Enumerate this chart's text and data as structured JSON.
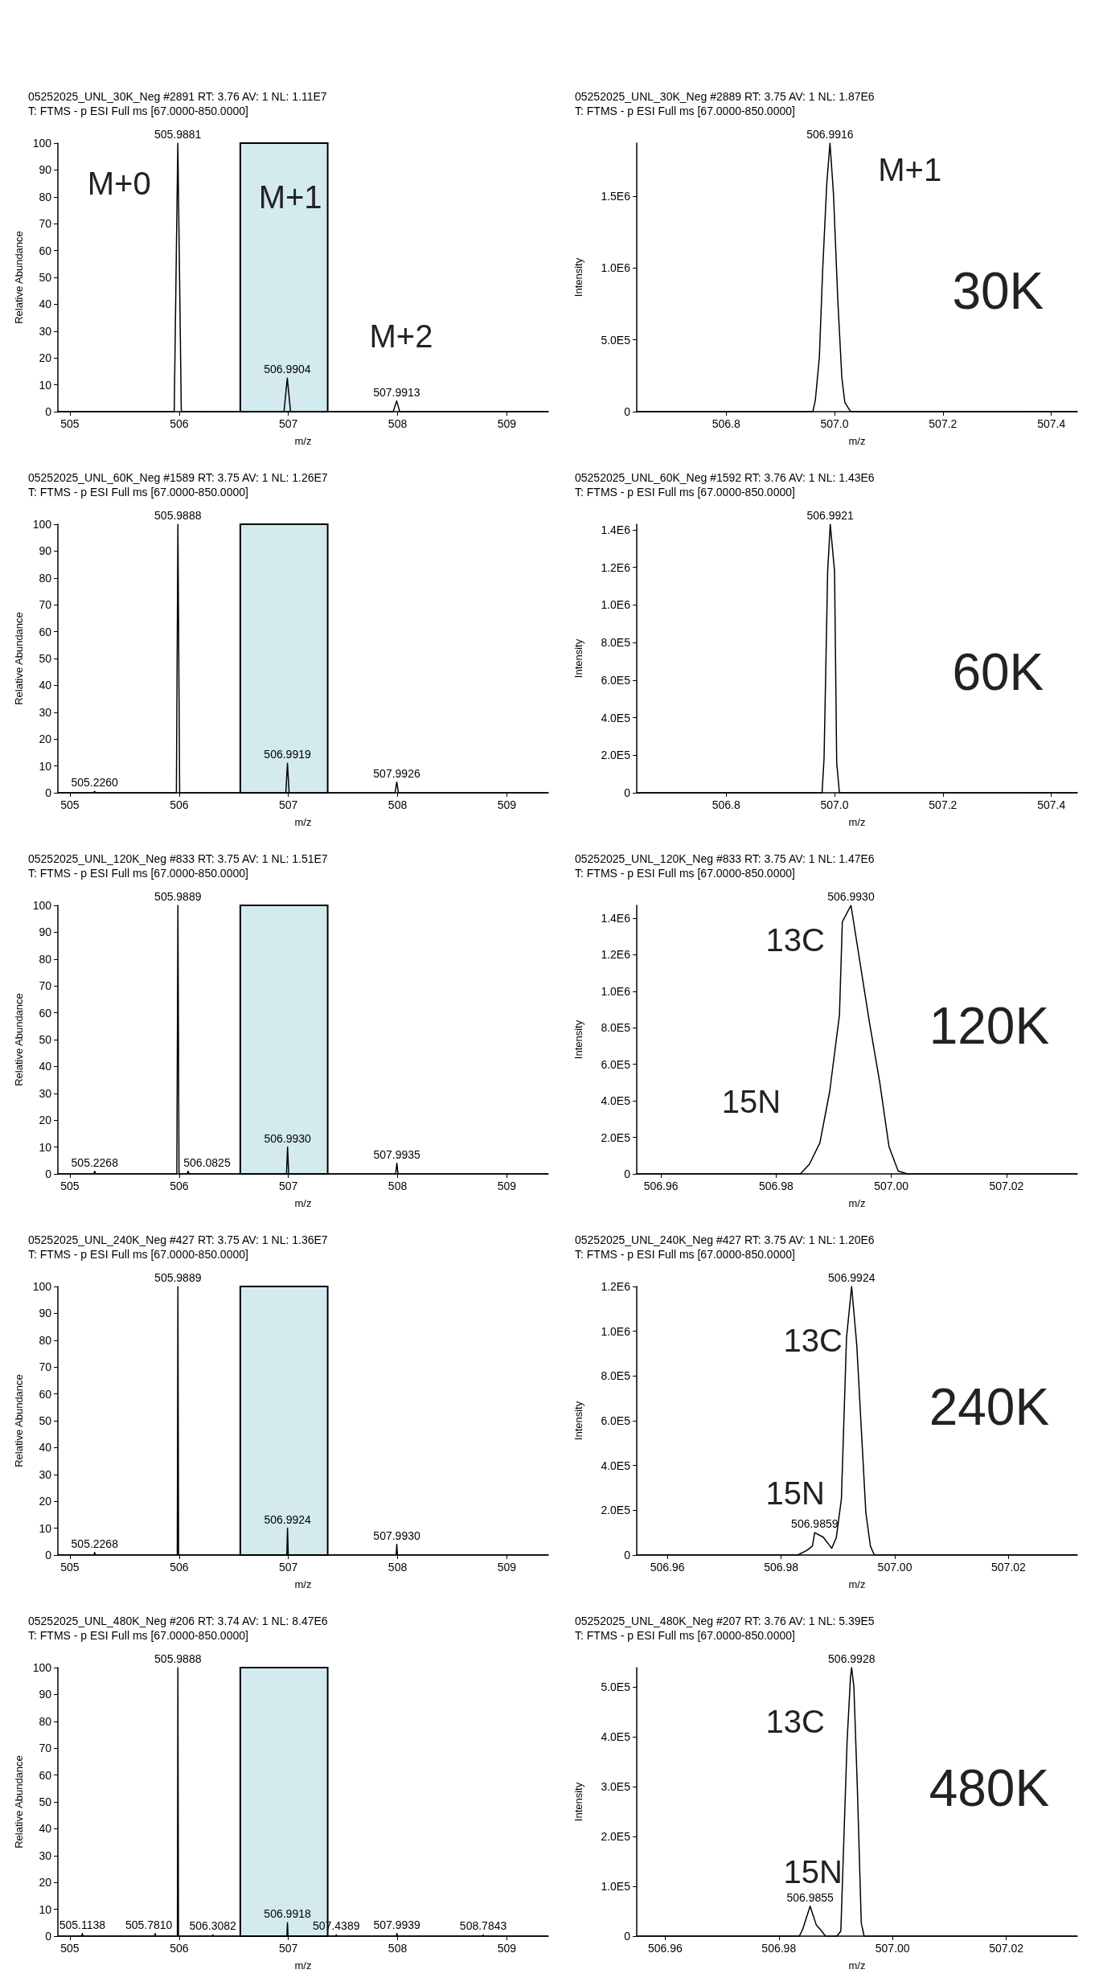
{
  "chart_data": [
    {
      "type": "line",
      "title": "05252025_UNL_30K_Neg #2891 RT: 3.76 AV: 1 NL: 1.11E7",
      "subtitle": "T: FTMS - p ESI Full ms [67.0000-850.0000]",
      "xlabel": "m/z",
      "ylabel": "Relative Abundance",
      "x": [
        504.89,
        505.955,
        505.9881,
        506.02,
        506.96,
        506.9904,
        507.02,
        507.96,
        507.9913,
        508.02,
        509.38
      ],
      "series": [
        {
          "color": "#000000",
          "values": [
            0,
            0,
            100,
            0,
            0,
            12.5,
            0,
            0,
            4,
            0,
            0
          ]
        }
      ],
      "xlim": [
        504.89,
        509.38
      ],
      "xticks": [
        505,
        506,
        507,
        508,
        509
      ],
      "ylim": [
        0,
        100
      ],
      "yticks": [
        0,
        10,
        20,
        30,
        40,
        50,
        60,
        70,
        80,
        90,
        100
      ],
      "grid": false,
      "bands": [
        {
          "axis": "x",
          "from": 506.56,
          "to": 507.36,
          "color": "#d3eaef"
        }
      ],
      "annotations": [
        {
          "text": "505.9881",
          "x": 505.9881,
          "y": 100
        },
        {
          "text": "506.9904",
          "x": 506.9904,
          "y": 12.5
        },
        {
          "text": "507.9913",
          "x": 507.9913,
          "y": 4
        },
        "M+0",
        "M+1",
        "M+2"
      ]
    },
    {
      "type": "line",
      "title": "05252025_UNL_30K_Neg #2889 RT: 3.75 AV: 1 NL: 1.87E6",
      "subtitle": "T: FTMS - p ESI Full ms [67.0000-850.0000]",
      "xlabel": "m/z",
      "ylabel": "Intensity",
      "x": [
        506.635,
        506.96,
        506.9646,
        506.972,
        506.978,
        506.9857,
        506.9916,
        506.998,
        507.006,
        507.0135,
        507.019,
        507.028,
        507.031,
        507.448
      ],
      "series": [
        {
          "color": "#000000",
          "values": [
            0,
            0,
            80000,
            380000,
            980000,
            1590000,
            1870000,
            1520000,
            780000,
            235000,
            65000,
            10000,
            0,
            0
          ]
        }
      ],
      "xlim": [
        506.635,
        507.448
      ],
      "xticks": [
        {
          "value": 506.8,
          "label": "506.8"
        },
        {
          "value": 507,
          "label": "507.0"
        },
        {
          "value": 507.2,
          "label": "507.2"
        },
        {
          "value": 507.4,
          "label": "507.4"
        }
      ],
      "ylim": [
        0,
        1870000
      ],
      "yticks": [
        0,
        {
          "value": 500000,
          "label": "5.0E5"
        },
        {
          "value": 1000000,
          "label": "1.0E6"
        },
        {
          "value": 1500000,
          "label": "1.5E6"
        }
      ],
      "grid": false,
      "annotations": [
        {
          "text": "506.9916",
          "x": 506.9916,
          "y": 1870000
        },
        "M+1",
        "30K"
      ]
    },
    {
      "type": "line",
      "title": "05252025_UNL_60K_Neg #1589 RT: 3.75 AV: 1 NL: 1.26E7",
      "subtitle": "T: FTMS - p ESI Full ms [67.0000-850.0000]",
      "xlabel": "m/z",
      "ylabel": "Relative Abundance",
      "x": [
        504.89,
        505.21,
        505.226,
        505.24,
        505.975,
        505.9888,
        506.005,
        506.977,
        506.9919,
        507.007,
        507.977,
        507.9926,
        508.008,
        509.38
      ],
      "series": [
        {
          "color": "#000000",
          "values": [
            0,
            0,
            0.5,
            0,
            0,
            100,
            0,
            0,
            11,
            0,
            0,
            4,
            0,
            0
          ]
        }
      ],
      "xlim": [
        504.89,
        509.38
      ],
      "xticks": [
        505,
        506,
        507,
        508,
        509
      ],
      "ylim": [
        0,
        100
      ],
      "yticks": [
        0,
        10,
        20,
        30,
        40,
        50,
        60,
        70,
        80,
        90,
        100
      ],
      "grid": false,
      "bands": [
        {
          "axis": "x",
          "from": 506.56,
          "to": 507.36,
          "color": "#d3eaef"
        }
      ],
      "annotations": [
        {
          "text": "505.2260",
          "x": 505.226,
          "y": 0.5
        },
        {
          "text": "505.9888",
          "x": 505.9888,
          "y": 100
        },
        {
          "text": "506.9919",
          "x": 506.9919,
          "y": 11
        },
        {
          "text": "507.9926",
          "x": 507.9926,
          "y": 4
        }
      ]
    },
    {
      "type": "line",
      "title": "05252025_UNL_60K_Neg #1592 RT: 3.76 AV: 1 NL: 1.43E6",
      "subtitle": "T: FTMS - p ESI Full ms [67.0000-850.0000]",
      "xlabel": "m/z",
      "ylabel": "Intensity",
      "x": [
        506.635,
        506.977,
        506.9807,
        506.9873,
        506.9921,
        507.0,
        507.004,
        507.009,
        507.448
      ],
      "series": [
        {
          "color": "#000000",
          "values": [
            0,
            0,
            185000,
            1180000,
            1430000,
            1180000,
            160000,
            0,
            0
          ]
        }
      ],
      "xlim": [
        506.635,
        507.448
      ],
      "xticks": [
        {
          "value": 506.8,
          "label": "506.8"
        },
        {
          "value": 507,
          "label": "507.0"
        },
        {
          "value": 507.2,
          "label": "507.2"
        },
        {
          "value": 507.4,
          "label": "507.4"
        }
      ],
      "ylim": [
        0,
        1430000
      ],
      "yticks": [
        0,
        {
          "value": 200000,
          "label": "2.0E5"
        },
        {
          "value": 400000,
          "label": "4.0E5"
        },
        {
          "value": 600000,
          "label": "6.0E5"
        },
        {
          "value": 800000,
          "label": "8.0E5"
        },
        {
          "value": 1000000,
          "label": "1.0E6"
        },
        {
          "value": 1200000,
          "label": "1.2E6"
        },
        {
          "value": 1400000,
          "label": "1.4E6"
        }
      ],
      "grid": false,
      "annotations": [
        {
          "text": "506.9921",
          "x": 506.9921,
          "y": 1430000
        },
        "60K"
      ]
    },
    {
      "type": "line",
      "title": "05252025_UNL_120K_Neg #833 RT: 3.75 AV: 1 NL: 1.51E7",
      "subtitle": "T: FTMS - p ESI Full ms [67.0000-850.0000]",
      "xlabel": "m/z",
      "ylabel": "Relative Abundance",
      "x": [
        504.89,
        505.217,
        505.2268,
        505.237,
        505.979,
        505.9889,
        505.999,
        506.072,
        506.0825,
        506.093,
        506.983,
        506.993,
        507.003,
        507.983,
        507.9935,
        508.004,
        509.38
      ],
      "series": [
        {
          "color": "#000000",
          "values": [
            0,
            0,
            1,
            0,
            0,
            100,
            0,
            0,
            1,
            0,
            0,
            10,
            0,
            0,
            4,
            0,
            0
          ]
        }
      ],
      "xlim": [
        504.89,
        509.38
      ],
      "xticks": [
        505,
        506,
        507,
        508,
        509
      ],
      "ylim": [
        0,
        100
      ],
      "yticks": [
        0,
        10,
        20,
        30,
        40,
        50,
        60,
        70,
        80,
        90,
        100
      ],
      "grid": false,
      "bands": [
        {
          "axis": "x",
          "from": 506.56,
          "to": 507.36,
          "color": "#d3eaef"
        }
      ],
      "annotations": [
        {
          "text": "505.2268",
          "x": 505.2268,
          "y": 1
        },
        {
          "text": "505.9889",
          "x": 505.9889,
          "y": 100
        },
        {
          "text": "506.0825",
          "x": 506.0825,
          "y": 1
        },
        {
          "text": "506.9930",
          "x": 506.993,
          "y": 10
        },
        {
          "text": "507.9935",
          "x": 507.9935,
          "y": 4
        }
      ]
    },
    {
      "type": "line",
      "title": "05252025_UNL_120K_Neg #833 RT: 3.75 AV: 1 NL: 1.47E6",
      "subtitle": "T: FTMS - p ESI Full ms [67.0000-850.0000]",
      "xlabel": "m/z",
      "ylabel": "Intensity",
      "x": [
        506.9558,
        506.9842,
        506.9858,
        506.9876,
        506.9893,
        506.991,
        506.9915,
        506.993,
        506.9962,
        506.998,
        506.9996,
        507.0012,
        507.0028,
        507.0323
      ],
      "series": [
        {
          "color": "#000000",
          "values": [
            0,
            0,
            54000,
            170000,
            450000,
            870000,
            1380000,
            1470000,
            830000,
            500000,
            150000,
            15000,
            0,
            0
          ]
        }
      ],
      "xlim": [
        506.9558,
        507.0323
      ],
      "xticks": [
        506.96,
        506.98,
        {
          "value": 507,
          "label": "507.00"
        },
        507.02
      ],
      "ylim": [
        0,
        1470000
      ],
      "yticks": [
        0,
        {
          "value": 200000,
          "label": "2.0E5"
        },
        {
          "value": 400000,
          "label": "4.0E5"
        },
        {
          "value": 600000,
          "label": "6.0E5"
        },
        {
          "value": 800000,
          "label": "8.0E5"
        },
        {
          "value": 1000000,
          "label": "1.0E6"
        },
        {
          "value": 1200000,
          "label": "1.2E6"
        },
        {
          "value": 1400000,
          "label": "1.4E6"
        }
      ],
      "grid": false,
      "annotations": [
        {
          "text": "506.9930",
          "x": 506.993,
          "y": 1470000
        },
        "13C",
        "15N",
        "120K"
      ]
    },
    {
      "type": "line",
      "title": "05252025_UNL_240K_Neg #427 RT: 3.75 AV: 1 NL: 1.36E7",
      "subtitle": "T: FTMS - p ESI Full ms [67.0000-850.0000]",
      "xlabel": "m/z",
      "ylabel": "Relative Abundance",
      "x": [
        504.89,
        505.221,
        505.2268,
        505.233,
        505.983,
        505.9889,
        505.995,
        506.986,
        506.9924,
        506.999,
        507.987,
        507.993,
        507.999,
        509.38
      ],
      "series": [
        {
          "color": "#000000",
          "values": [
            0,
            0,
            1,
            0,
            0,
            100,
            0,
            0,
            10,
            0,
            0,
            4,
            0,
            0
          ]
        }
      ],
      "xlim": [
        504.89,
        509.38
      ],
      "xticks": [
        505,
        506,
        507,
        508,
        509
      ],
      "ylim": [
        0,
        100
      ],
      "yticks": [
        0,
        10,
        20,
        30,
        40,
        50,
        60,
        70,
        80,
        90,
        100
      ],
      "grid": false,
      "bands": [
        {
          "axis": "x",
          "from": 506.56,
          "to": 507.36,
          "color": "#d3eaef"
        }
      ],
      "annotations": [
        {
          "text": "505.2268",
          "x": 505.2268,
          "y": 1
        },
        {
          "text": "505.9889",
          "x": 505.9889,
          "y": 100
        },
        {
          "text": "506.9924",
          "x": 506.9924,
          "y": 10
        },
        {
          "text": "507.9930",
          "x": 507.993,
          "y": 4
        }
      ]
    },
    {
      "type": "line",
      "title": "05252025_UNL_240K_Neg #427 RT: 3.75 AV: 1 NL: 1.20E6",
      "subtitle": "T: FTMS - p ESI Full ms [67.0000-850.0000]",
      "xlabel": "m/z",
      "ylabel": "Intensity",
      "x": [
        506.9546,
        506.9829,
        506.9845,
        506.9855,
        506.9859,
        506.9874,
        506.9889,
        506.9897,
        506.9906,
        506.9915,
        506.9924,
        506.9933,
        506.9949,
        506.9957,
        506.9964,
        507.0321
      ],
      "series": [
        {
          "color": "#000000",
          "values": [
            0,
            0,
            20000,
            40000,
            100000,
            80000,
            30000,
            77000,
            250000,
            970000,
            1200000,
            940000,
            190000,
            40000,
            0,
            0
          ]
        }
      ],
      "xlim": [
        506.9546,
        507.0321
      ],
      "xticks": [
        506.96,
        506.98,
        {
          "value": 507,
          "label": "507.00"
        },
        507.02
      ],
      "ylim": [
        0,
        1200000
      ],
      "yticks": [
        0,
        {
          "value": 200000,
          "label": "2.0E5"
        },
        {
          "value": 400000,
          "label": "4.0E5"
        },
        {
          "value": 600000,
          "label": "6.0E5"
        },
        {
          "value": 800000,
          "label": "8.0E5"
        },
        {
          "value": 1000000,
          "label": "1.0E6"
        },
        {
          "value": 1200000,
          "label": "1.2E6"
        }
      ],
      "grid": false,
      "annotations": [
        {
          "text": "506.9859",
          "x": 506.9859,
          "y": 100000
        },
        {
          "text": "506.9924",
          "x": 506.9924,
          "y": 1200000
        },
        "13C",
        "15N",
        "240K"
      ]
    },
    {
      "type": "line",
      "title": "05252025_UNL_480K_Neg #206 RT: 3.74 AV: 1 NL: 8.47E6",
      "subtitle": "T: FTMS - p ESI Full ms [67.0000-850.0000]",
      "xlabel": "m/z",
      "ylabel": "Relative Abundance",
      "x": [
        504.89,
        505.109,
        505.1138,
        505.119,
        505.776,
        505.781,
        505.786,
        505.984,
        505.9888,
        505.994,
        506.303,
        506.3082,
        506.313,
        506.987,
        506.9918,
        506.997,
        507.434,
        507.4389,
        507.444,
        507.989,
        507.9939,
        507.999,
        508.779,
        508.7843,
        508.789,
        509.38
      ],
      "series": [
        {
          "color": "#000000",
          "values": [
            0,
            0,
            1,
            0,
            0,
            1,
            0,
            0,
            100,
            0,
            0,
            0.5,
            0,
            0,
            5,
            0,
            0,
            0.5,
            0,
            0,
            1,
            0,
            0,
            0.5,
            0,
            0
          ]
        }
      ],
      "xlim": [
        504.89,
        509.38
      ],
      "xticks": [
        505,
        506,
        507,
        508,
        509
      ],
      "ylim": [
        0,
        100
      ],
      "yticks": [
        0,
        10,
        20,
        30,
        40,
        50,
        60,
        70,
        80,
        90,
        100
      ],
      "grid": false,
      "bands": [
        {
          "axis": "x",
          "from": 506.56,
          "to": 507.36,
          "color": "#d3eaef"
        }
      ],
      "annotations": [
        {
          "text": "505.1138",
          "x": 505.1138,
          "y": 1
        },
        {
          "text": "505.7810",
          "x": 505.781,
          "y": 1
        },
        {
          "text": "505.9888",
          "x": 505.9888,
          "y": 100
        },
        {
          "text": "506.3082",
          "x": 506.3082,
          "y": 0.5
        },
        {
          "text": "506.9918",
          "x": 506.9918,
          "y": 5
        },
        {
          "text": "507.4389",
          "x": 507.4389,
          "y": 0.5
        },
        {
          "text": "507.9939",
          "x": 507.9939,
          "y": 1
        },
        {
          "text": "508.7843",
          "x": 508.7843,
          "y": 0.5
        }
      ]
    },
    {
      "type": "line",
      "title": "05252025_UNL_480K_Neg #207 RT: 3.76 AV: 1 NL: 5.39E5",
      "subtitle": "T: FTMS - p ESI Full ms [67.0000-850.0000]",
      "xlabel": "m/z",
      "ylabel": "Intensity",
      "x": [
        506.955,
        506.9836,
        506.9842,
        506.9855,
        506.9866,
        506.9874,
        506.9882,
        506.9902,
        506.9909,
        506.992,
        506.9926,
        506.9928,
        506.9932,
        506.9938,
        506.9945,
        506.995,
        507.0325
      ],
      "series": [
        {
          "color": "#000000",
          "values": [
            0,
            0,
            14000,
            60000,
            22000,
            12000,
            0,
            0,
            10000,
            390000,
            520000,
            539000,
            500000,
            300000,
            26000,
            0,
            0
          ]
        }
      ],
      "xlim": [
        506.955,
        507.0325
      ],
      "xticks": [
        506.96,
        506.98,
        {
          "value": 507,
          "label": "507.00"
        },
        507.02
      ],
      "ylim": [
        0,
        539000
      ],
      "yticks": [
        0,
        {
          "value": 100000,
          "label": "1.0E5"
        },
        {
          "value": 200000,
          "label": "2.0E5"
        },
        {
          "value": 300000,
          "label": "3.0E5"
        },
        {
          "value": 400000,
          "label": "4.0E5"
        },
        {
          "value": 500000,
          "label": "5.0E5"
        }
      ],
      "grid": false,
      "annotations": [
        {
          "text": "506.9855",
          "x": 506.9855,
          "y": 60000
        },
        {
          "text": "506.9928",
          "x": 506.9928,
          "y": 539000
        },
        "13C",
        "15N",
        "480K"
      ]
    }
  ]
}
